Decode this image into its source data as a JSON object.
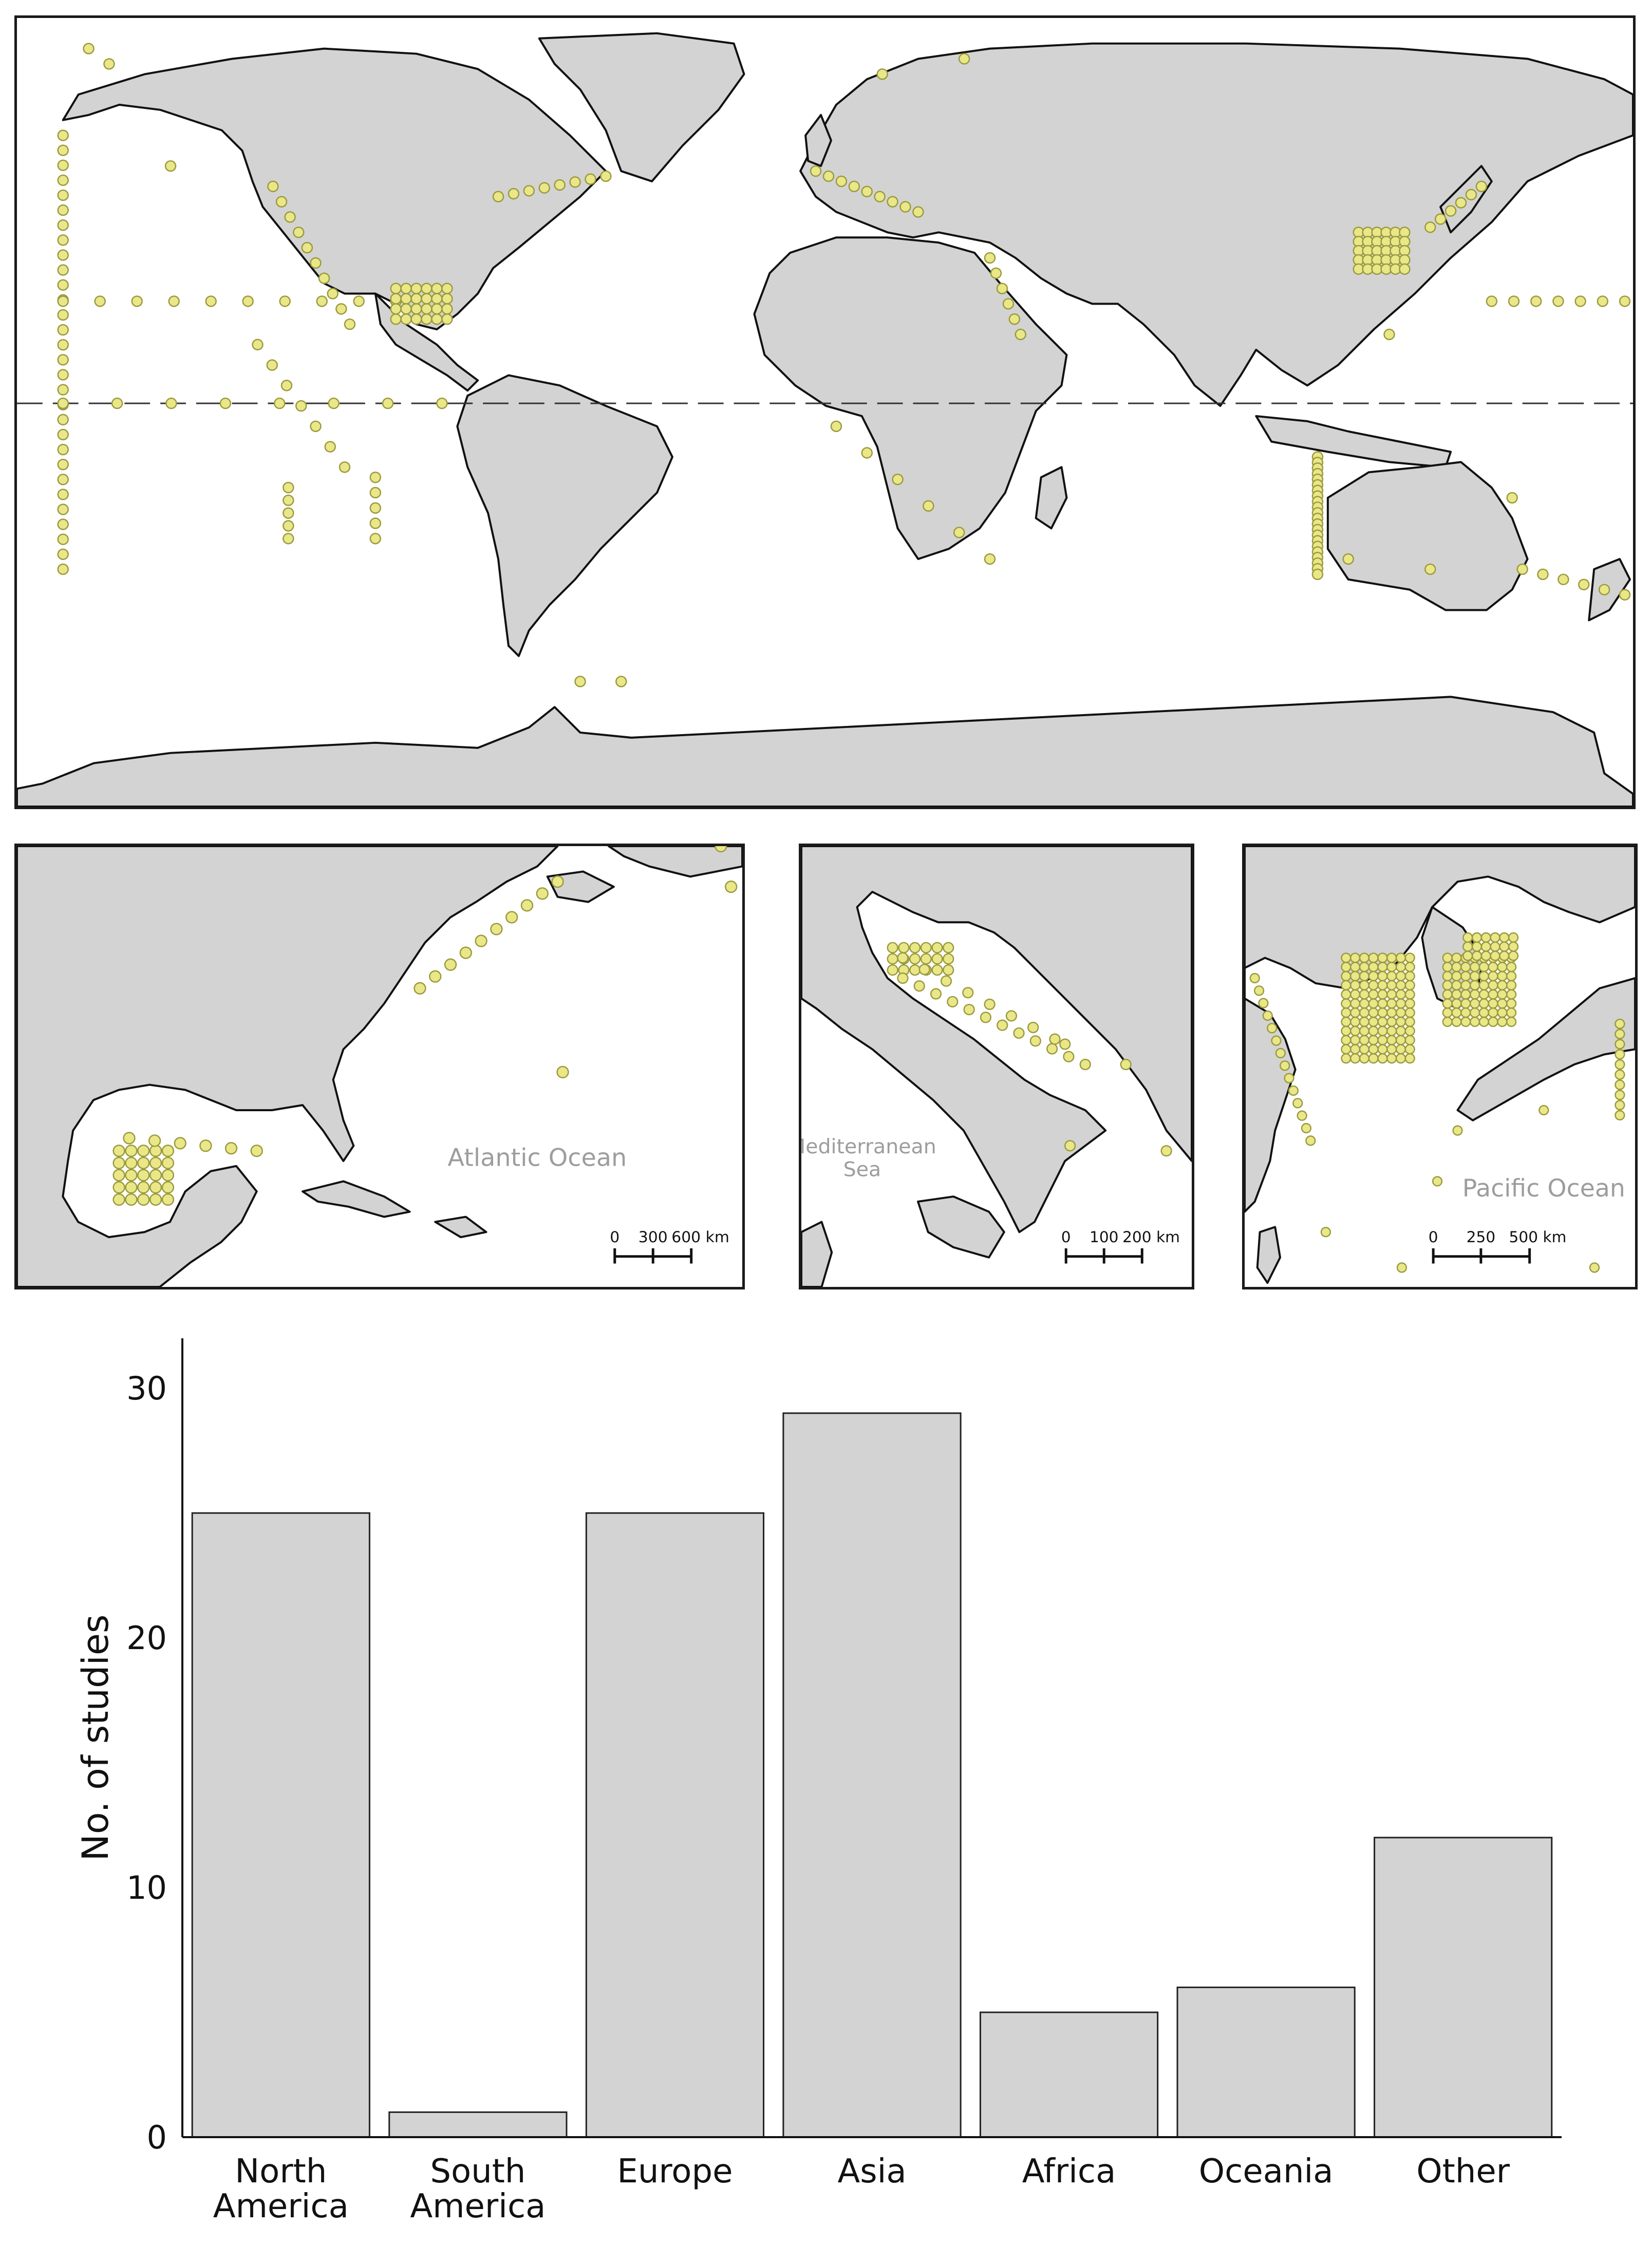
{
  "world_map": {
    "equator_line": "dashed"
  },
  "insets": [
    {
      "id": "atlantic",
      "ocean_label": "Atlantic Ocean",
      "scale_ticks": [
        "0",
        "300",
        "600 km"
      ]
    },
    {
      "id": "mediterranean",
      "ocean_label_line1": "Mediterranean",
      "ocean_label_line2": "Sea",
      "scale_ticks": [
        "0",
        "100",
        "200 km"
      ]
    },
    {
      "id": "pacific",
      "ocean_label": "Pacific Ocean",
      "scale_ticks": [
        "0",
        "250",
        "500 km"
      ]
    }
  ],
  "colors": {
    "land": "#d3d3d3",
    "coast": "#111111",
    "study_point": "#e9e787",
    "bar": "#d3d3d3"
  },
  "chart_data": {
    "type": "bar",
    "categories": [
      [
        "North",
        "America"
      ],
      [
        "South",
        "America"
      ],
      [
        "Europe"
      ],
      [
        "Asia"
      ],
      [
        "Africa"
      ],
      [
        "Oceania"
      ],
      [
        "Other"
      ]
    ],
    "values": [
      25,
      1,
      25,
      29,
      5,
      6,
      12
    ],
    "ylabel": "No. of studies",
    "yticks": [
      "0",
      "10",
      "20",
      "30"
    ],
    "ylim": [
      0,
      32
    ]
  }
}
